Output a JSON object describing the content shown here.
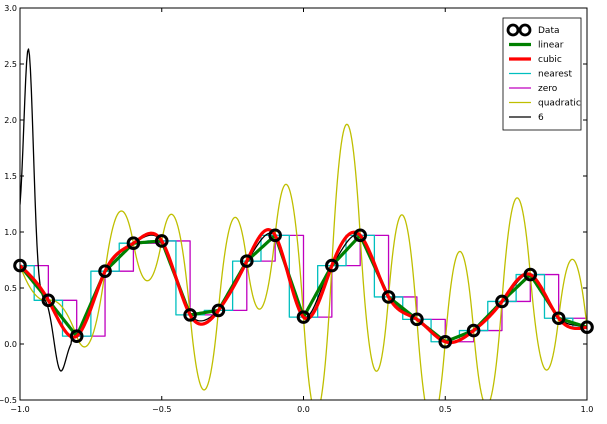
{
  "chart_data": {
    "type": "line",
    "title": "",
    "xlabel": "",
    "ylabel": "",
    "xlim": [
      -1.0,
      1.0
    ],
    "ylim": [
      -0.5,
      3.0
    ],
    "xticks": [
      -1.0,
      -0.5,
      0.0,
      0.5,
      1.0
    ],
    "xtick_labels": [
      "−1.0",
      "−0.5",
      "0.0",
      "0.5",
      "1.0"
    ],
    "yticks": [
      -0.5,
      0.0,
      0.5,
      1.0,
      1.5,
      2.0,
      2.5,
      3.0
    ],
    "ytick_labels": [
      "−0.5",
      "0.0",
      "0.5",
      "1.0",
      "1.5",
      "2.0",
      "2.5",
      "3.0"
    ],
    "grid": false,
    "legend_position": "top-right",
    "data_points": {
      "name": "Data",
      "x": [
        -1.0,
        -0.9,
        -0.8,
        -0.7,
        -0.6,
        -0.5,
        -0.4,
        -0.3,
        -0.2,
        -0.1,
        0.0,
        0.1,
        0.2,
        0.3,
        0.4,
        0.5,
        0.6,
        0.7,
        0.8,
        0.9,
        1.0
      ],
      "y": [
        0.7,
        0.39,
        0.07,
        0.65,
        0.9,
        0.92,
        0.26,
        0.3,
        0.74,
        0.97,
        0.24,
        0.7,
        0.97,
        0.42,
        0.22,
        0.02,
        0.12,
        0.38,
        0.62,
        0.23,
        0.15
      ]
    },
    "series": [
      {
        "name": "linear",
        "color": "#008000",
        "width": 3.2,
        "kind": "linear"
      },
      {
        "name": "cubic",
        "color": "#ff0000",
        "width": 3.2,
        "kind": "cubic"
      },
      {
        "name": "nearest",
        "color": "#00bfbf",
        "width": 1.3,
        "kind": "nearest"
      },
      {
        "name": "zero",
        "color": "#bf00bf",
        "width": 1.3,
        "kind": "zero"
      },
      {
        "name": "quadratic",
        "color": "#bfbf00",
        "width": 1.3,
        "kind": "quadratic"
      },
      {
        "name": "6",
        "color": "#000000",
        "width": 1.3,
        "kind": "poly6"
      }
    ]
  }
}
